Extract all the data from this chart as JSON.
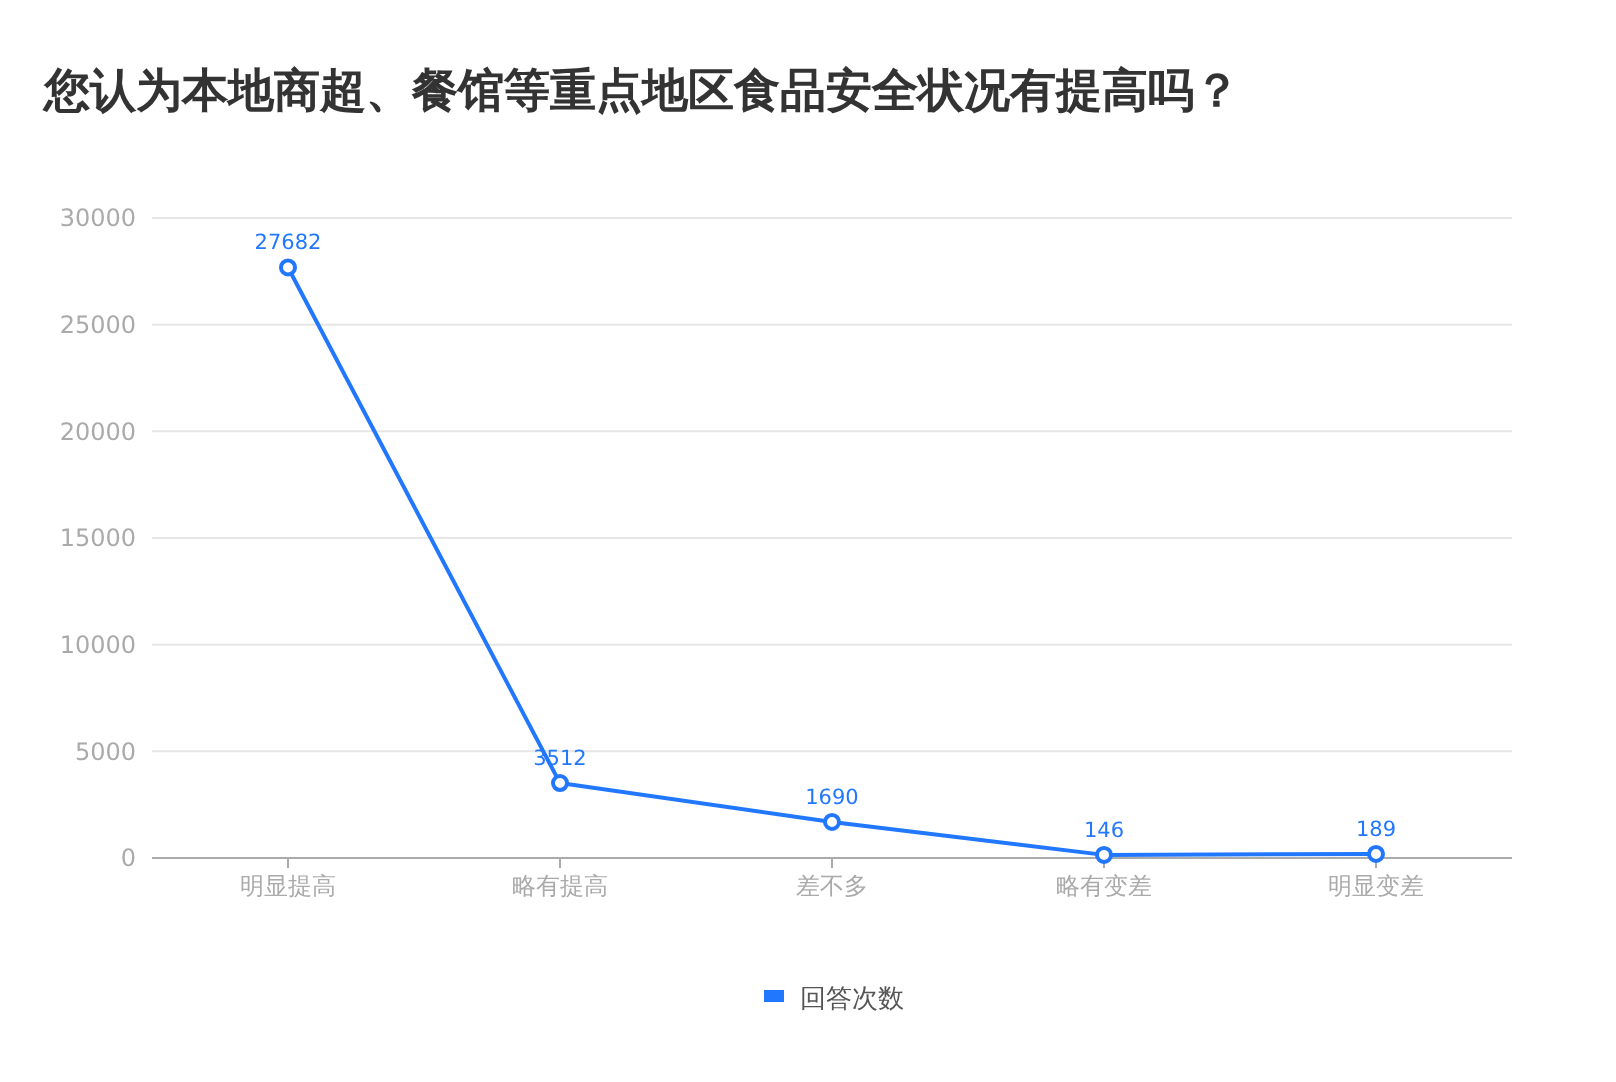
{
  "chart_data": {
    "type": "line",
    "title": "您认为本地商超、餐馆等重点地区食品安全状况有提高吗？",
    "categories": [
      "明显提高",
      "略有提高",
      "差不多",
      "略有变差",
      "明显变差"
    ],
    "series": [
      {
        "name": "回答次数",
        "color": "#2277ff",
        "values": [
          27682,
          3512,
          1690,
          146,
          189
        ]
      }
    ],
    "ylim": [
      0,
      30000
    ],
    "yticks": [
      0,
      5000,
      10000,
      15000,
      20000,
      25000,
      30000
    ],
    "grid": "y",
    "legend": "bottom",
    "marker": "circle",
    "line_style": "solid",
    "data_labels": true
  }
}
